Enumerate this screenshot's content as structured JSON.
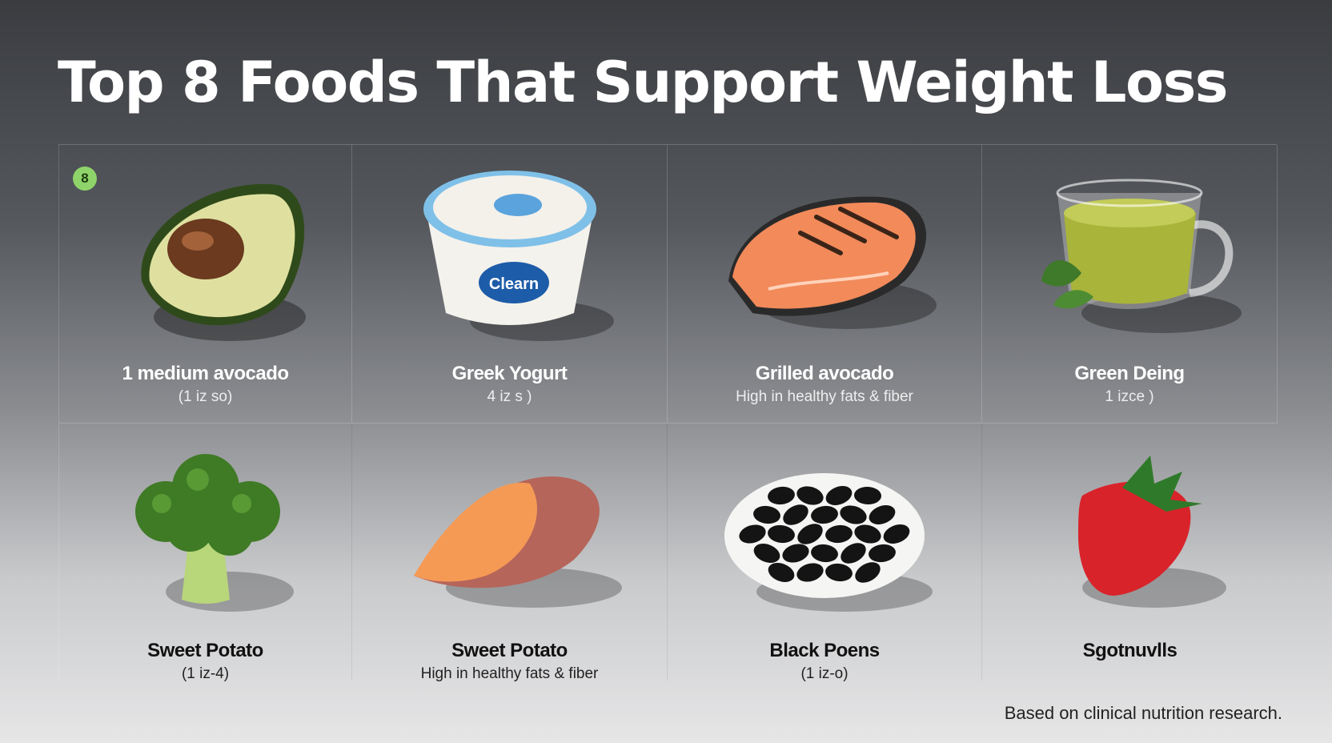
{
  "title": "Top 8 Foods That Support Weight Loss",
  "badge": "8",
  "foods": [
    {
      "name": "1 medium avocado",
      "detail": "(1 iz so)",
      "icon": "avocado"
    },
    {
      "name": "Greek Yogurt",
      "detail": "4 iz s )",
      "icon": "yogurt-cup",
      "label": "Clearn"
    },
    {
      "name": "Grilled avocado",
      "detail": "High in healthy fats & fiber",
      "icon": "salmon-steak"
    },
    {
      "name": "Green Deing",
      "detail": "1 izce )",
      "icon": "green-tea-cup"
    },
    {
      "name": "Sweet Potato",
      "detail": "(1 iz-4)",
      "icon": "broccoli"
    },
    {
      "name": "Sweet Potato",
      "detail": "High in healthy fats & fiber",
      "icon": "sweet-potato"
    },
    {
      "name": "Black Poens",
      "detail": "(1 iz-o)",
      "icon": "black-beans-bowl"
    },
    {
      "name": "Sgotnuvlls",
      "detail": "",
      "icon": "strawberry"
    }
  ],
  "footer": "Based on clinical nutrition research.",
  "colors": {
    "badge": "#8fd46a",
    "title": "#ffffff"
  }
}
